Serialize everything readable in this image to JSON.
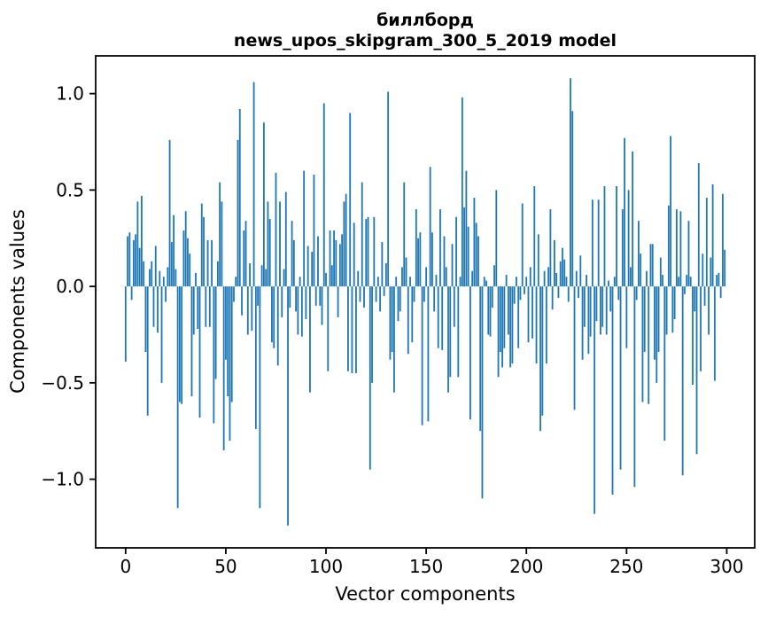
{
  "figure": {
    "title_line1": "биллборд",
    "title_line2": "news_upos_skipgram_300_5_2019 model",
    "xlabel": "Vector components",
    "ylabel": "Components values"
  },
  "chart_data": {
    "type": "bar",
    "title": "биллборд\nnews_upos_skipgram_300_5_2019 model",
    "title_line1": "биллборд",
    "title_line2": "news_upos_skipgram_300_5_2019 model",
    "xlabel": "Vector components",
    "ylabel": "Components values",
    "bar_color": "#1f77b4",
    "grid": false,
    "legend": null,
    "x_start": 0,
    "x_step": 1,
    "n_points": 300,
    "xlim": [
      -14.95,
      313.95
    ],
    "ylim": [
      -1.356,
      1.196
    ],
    "xticks": [
      0,
      50,
      100,
      150,
      200,
      250,
      300
    ],
    "xtick_labels": [
      "0",
      "50",
      "100",
      "150",
      "200",
      "250",
      "300"
    ],
    "yticks": [
      1.0,
      0.5,
      0.0,
      -0.5,
      -1.0
    ],
    "ytick_labels": [
      "1.0",
      "0.5",
      "0.0",
      "−0.5",
      "−1.0"
    ],
    "values": [
      -0.39,
      0.26,
      0.28,
      -0.07,
      0.24,
      0.27,
      0.44,
      0.2,
      0.47,
      0.13,
      -0.34,
      -0.67,
      0.09,
      0.13,
      -0.21,
      0.21,
      -0.24,
      0.08,
      -0.5,
      0.05,
      -0.08,
      0.1,
      0.76,
      0.23,
      0.37,
      0.09,
      -1.15,
      -0.6,
      -0.61,
      0.29,
      0.39,
      0.25,
      0.17,
      -0.57,
      -0.25,
      0.07,
      -0.22,
      -0.68,
      0.43,
      0.36,
      -0.21,
      0.24,
      -0.21,
      0.24,
      -0.71,
      -0.48,
      0.13,
      0.54,
      0.44,
      -0.85,
      -0.38,
      -0.57,
      -0.8,
      -0.6,
      -0.08,
      0.05,
      0.76,
      0.92,
      -0.15,
      0.29,
      0.34,
      -0.25,
      0.12,
      -0.23,
      1.06,
      -0.74,
      -0.1,
      -1.15,
      0.11,
      0.85,
      0.09,
      0.44,
      0.35,
      -0.29,
      -0.32,
      0.59,
      -0.41,
      0.44,
      -0.16,
      0.09,
      0.49,
      -1.24,
      -0.11,
      0.34,
      0.24,
      -0.13,
      -0.25,
      0.05,
      -0.26,
      0.6,
      -0.17,
      0.21,
      -0.55,
      0.18,
      0.58,
      -0.1,
      0.26,
      -0.1,
      -0.2,
      0.95,
      0.07,
      -0.44,
      0.29,
      0.11,
      0.29,
      0.24,
      -0.16,
      0.22,
      0.27,
      0.44,
      0.48,
      -0.44,
      0.9,
      -0.45,
      0.33,
      -0.45,
      0.08,
      -0.08,
      0.54,
      -0.11,
      0.35,
      0.36,
      -0.95,
      -0.5,
      0.36,
      -0.08,
      0.05,
      -0.13,
      0.23,
      -0.05,
      0.12,
      1.01,
      -0.38,
      -0.34,
      -0.55,
      0.05,
      -0.18,
      -0.13,
      0.1,
      0.54,
      0.15,
      -0.35,
      0.05,
      -0.29,
      -0.08,
      0.4,
      0.25,
      0.28,
      -0.72,
      -0.08,
      0.1,
      -0.7,
      0.62,
      0.28,
      -0.13,
      0.06,
      -0.32,
      0.4,
      -0.33,
      0.26,
      0.1,
      -0.55,
      -0.47,
      0.22,
      -0.21,
      0.36,
      -0.47,
      0.05,
      0.98,
      0.41,
      0.6,
      0.31,
      -0.69,
      0.08,
      0.46,
      0.33,
      0.26,
      -0.75,
      -1.1,
      0.05,
      0.03,
      -0.25,
      -0.26,
      -0.11,
      0.11,
      0.5,
      -0.47,
      -0.34,
      -0.42,
      -0.32,
      0.06,
      -0.25,
      -0.42,
      -0.4,
      -0.09,
      0.05,
      -0.32,
      -0.07,
      0.43,
      -0.04,
      0.05,
      -0.29,
      0.1,
      -0.27,
      0.52,
      -0.4,
      0.27,
      -0.75,
      -0.67,
      0.08,
      -0.4,
      0.1,
      0.4,
      -0.12,
      0.24,
      0.07,
      -0.06,
      0.13,
      0.2,
      0.14,
      0.05,
      -0.08,
      1.08,
      0.91,
      -0.64,
      0.08,
      -0.06,
      0.16,
      -0.38,
      -0.21,
      0.06,
      -0.35,
      -0.26,
      0.45,
      -1.18,
      -0.18,
      0.45,
      -0.25,
      -0.21,
      0.52,
      -0.25,
      0.03,
      -0.13,
      -1.08,
      0.05,
      0.52,
      -0.07,
      -0.95,
      0.4,
      0.77,
      -0.32,
      0.5,
      0.1,
      0.7,
      -1.04,
      -0.07,
      0.34,
      0.17,
      -0.6,
      -0.34,
      0.08,
      -0.61,
      0.22,
      0.22,
      -0.38,
      -0.5,
      -0.34,
      0.15,
      0.06,
      -0.8,
      -0.25,
      0.42,
      0.78,
      -0.24,
      -0.17,
      0.4,
      0.05,
      0.39,
      -0.98,
      -0.04,
      0.06,
      0.34,
      0.05,
      -0.51,
      -0.13,
      -0.87,
      0.64,
      -0.44,
      0.17,
      -0.1,
      0.46,
      -0.25,
      0.15,
      0.53,
      -0.49,
      0.06,
      0.07,
      -0.06,
      0.48,
      0.19
    ]
  }
}
